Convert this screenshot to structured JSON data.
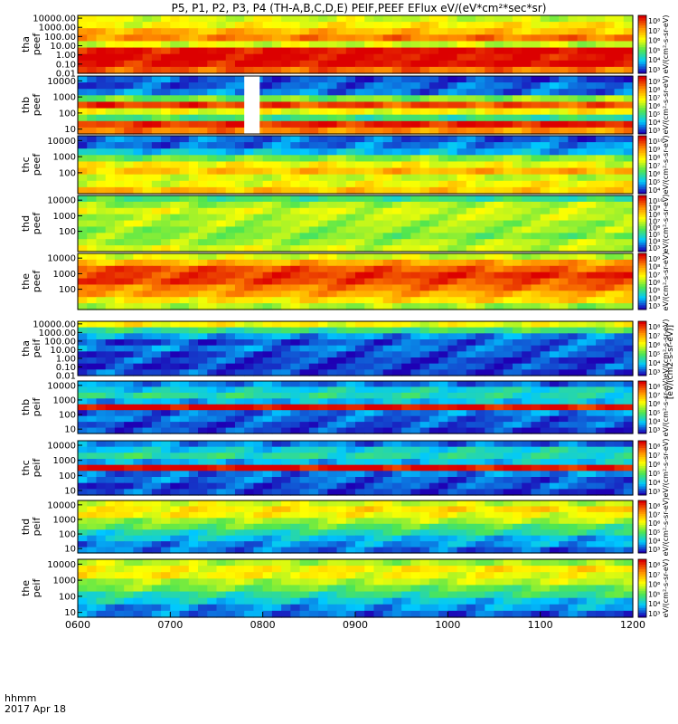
{
  "figure": {
    "title": "P5, P1, P2, P3, P4 (TH-A,B,C,D,E) PEIF,PEEF EFlux eV/(eV*cm²*sec*sr)",
    "footer_line1": "hhmm",
    "footer_line2": "2017 Apr 18",
    "colorbar_label_short": "eV/(cm²-s-sr-eV)",
    "colorbar_label_long": "[eV/(cm2-s-sr-eV)]"
  },
  "colors": {
    "low": "#1e00b4",
    "mid_low": "#00c8ff",
    "mid": "#50e650",
    "mid_high": "#ffff00",
    "high": "#ff8c00",
    "max": "#dc0000",
    "gap": "#ffffff"
  },
  "chart_data": {
    "type": "heatmap",
    "x_ticks": [
      "0600",
      "0700",
      "0800",
      "0900",
      "1000",
      "1100",
      "1200"
    ],
    "x_range_hhmm": [
      "0600",
      "1200"
    ],
    "date": "2017 Apr 18",
    "panels": [
      {
        "id": "tha-peef",
        "label_line1": "tha",
        "label_line2": "peef",
        "y_ticks": [
          "10000.00",
          "1000.00",
          "100.00",
          "10.00",
          "1.00",
          "0.10",
          "0.01"
        ],
        "ylim": [
          0.01,
          20000
        ],
        "log": true,
        "cbar_ticks": [
          "10⁸",
          "10⁷",
          "10⁶",
          "10⁵",
          "10⁴",
          "10³"
        ],
        "band_levels": [
          0.55,
          0.62,
          0.72,
          0.82,
          0.55,
          0.99,
          0.99,
          0.99,
          0.85
        ]
      },
      {
        "id": "thb-peef",
        "label_line1": "thb",
        "label_line2": "peef",
        "y_ticks": [
          "10000",
          "1000",
          "100",
          "10"
        ],
        "ylim": [
          5,
          20000
        ],
        "log": true,
        "cbar_ticks": [
          "10⁹",
          "10⁸",
          "10⁷",
          "10⁶",
          "10⁵",
          "10⁴",
          "10³"
        ],
        "band_levels": [
          0.08,
          0.1,
          0.12,
          0.45,
          0.9,
          0.6,
          0.35,
          0.95,
          0.8
        ],
        "gap_hhmm": [
          "0748",
          "0758"
        ]
      },
      {
        "id": "thc-peef",
        "label_line1": "thc",
        "label_line2": "peef",
        "y_ticks": [
          "10000",
          "1000",
          "100"
        ],
        "ylim": [
          5,
          20000
        ],
        "log": true,
        "cbar_ticks": [
          "10¹⁰",
          "10⁹",
          "10⁸",
          "10⁷",
          "10⁶",
          "10⁵",
          "10⁴"
        ],
        "band_levels": [
          0.1,
          0.12,
          0.2,
          0.45,
          0.6,
          0.72,
          0.55,
          0.6,
          0.7
        ]
      },
      {
        "id": "thd-peef",
        "label_line1": "thd",
        "label_line2": "peef",
        "y_ticks": [
          "10000",
          "1000",
          "100"
        ],
        "ylim": [
          5,
          20000
        ],
        "log": true,
        "cbar_ticks": [
          "10¹⁰",
          "10⁹",
          "10⁸",
          "10⁷",
          "10⁶",
          "10⁵",
          "10⁴",
          "10³"
        ],
        "band_levels": [
          0.35,
          0.5,
          0.55,
          0.52,
          0.5,
          0.48,
          0.45,
          0.5,
          0.55
        ]
      },
      {
        "id": "the-peef",
        "label_line1": "the",
        "label_line2": "peef",
        "y_ticks": [
          "10000",
          "1000",
          "100"
        ],
        "ylim": [
          5,
          20000
        ],
        "log": true,
        "cbar_ticks": [
          "10⁹",
          "10⁸",
          "10⁷",
          "10⁶",
          "10⁵",
          "10⁴",
          "10³"
        ],
        "band_levels": [
          0.55,
          0.75,
          0.88,
          0.93,
          0.9,
          0.82,
          0.75,
          0.65,
          0.5
        ]
      },
      {
        "id": "tha-peif",
        "label_line1": "tha",
        "label_line2": "peif",
        "y_ticks": [
          "10000.00",
          "1000.00",
          "100.00",
          "10.00",
          "1.00",
          "0.10",
          "0.01"
        ],
        "ylim": [
          0.01,
          20000
        ],
        "log": true,
        "cbar_ticks": [
          "10⁸",
          "10⁷",
          "10⁶",
          "10⁵",
          "10⁴",
          "10³"
        ],
        "band_levels": [
          0.6,
          0.35,
          0.15,
          0.08,
          0.12,
          0.08,
          0.06,
          0.06,
          0.06
        ]
      },
      {
        "id": "thb-peif",
        "label_line1": "thb",
        "label_line2": "peif",
        "y_ticks": [
          "10000",
          "1000",
          "100",
          "10"
        ],
        "ylim": [
          5,
          20000
        ],
        "log": true,
        "cbar_ticks": [
          "10⁸",
          "10⁷",
          "10⁶",
          "10⁵",
          "10⁴",
          "10³"
        ],
        "band_levels": [
          0.12,
          0.25,
          0.3,
          0.2,
          0.99,
          0.12,
          0.1,
          0.08,
          0.06
        ]
      },
      {
        "id": "thc-peif",
        "label_line1": "thc",
        "label_line2": "peif",
        "y_ticks": [
          "10000",
          "1000",
          "100",
          "10"
        ],
        "ylim": [
          5,
          20000
        ],
        "log": true,
        "cbar_ticks": [
          "10⁸",
          "10⁷",
          "10⁶",
          "10⁵",
          "10⁴",
          "10³"
        ],
        "band_levels": [
          0.12,
          0.25,
          0.3,
          0.2,
          0.99,
          0.12,
          0.1,
          0.08,
          0.06
        ]
      },
      {
        "id": "thd-peif",
        "label_line1": "thd",
        "label_line2": "peif",
        "y_ticks": [
          "10000",
          "1000",
          "100",
          "10"
        ],
        "ylim": [
          5,
          20000
        ],
        "log": true,
        "cbar_ticks": [
          "10⁸",
          "10⁷",
          "10⁶",
          "10⁵",
          "10⁴",
          "10³"
        ],
        "band_levels": [
          0.55,
          0.65,
          0.6,
          0.5,
          0.4,
          0.3,
          0.2,
          0.15,
          0.1
        ]
      },
      {
        "id": "the-peif",
        "label_line1": "the",
        "label_line2": "peif",
        "y_ticks": [
          "10000",
          "1000",
          "100",
          "10"
        ],
        "ylim": [
          5,
          20000
        ],
        "log": true,
        "cbar_ticks": [
          "10⁸",
          "10⁷",
          "10⁶",
          "10⁵",
          "10⁴",
          "10³"
        ],
        "band_levels": [
          0.5,
          0.62,
          0.6,
          0.52,
          0.42,
          0.32,
          0.22,
          0.15,
          0.1
        ]
      }
    ]
  }
}
